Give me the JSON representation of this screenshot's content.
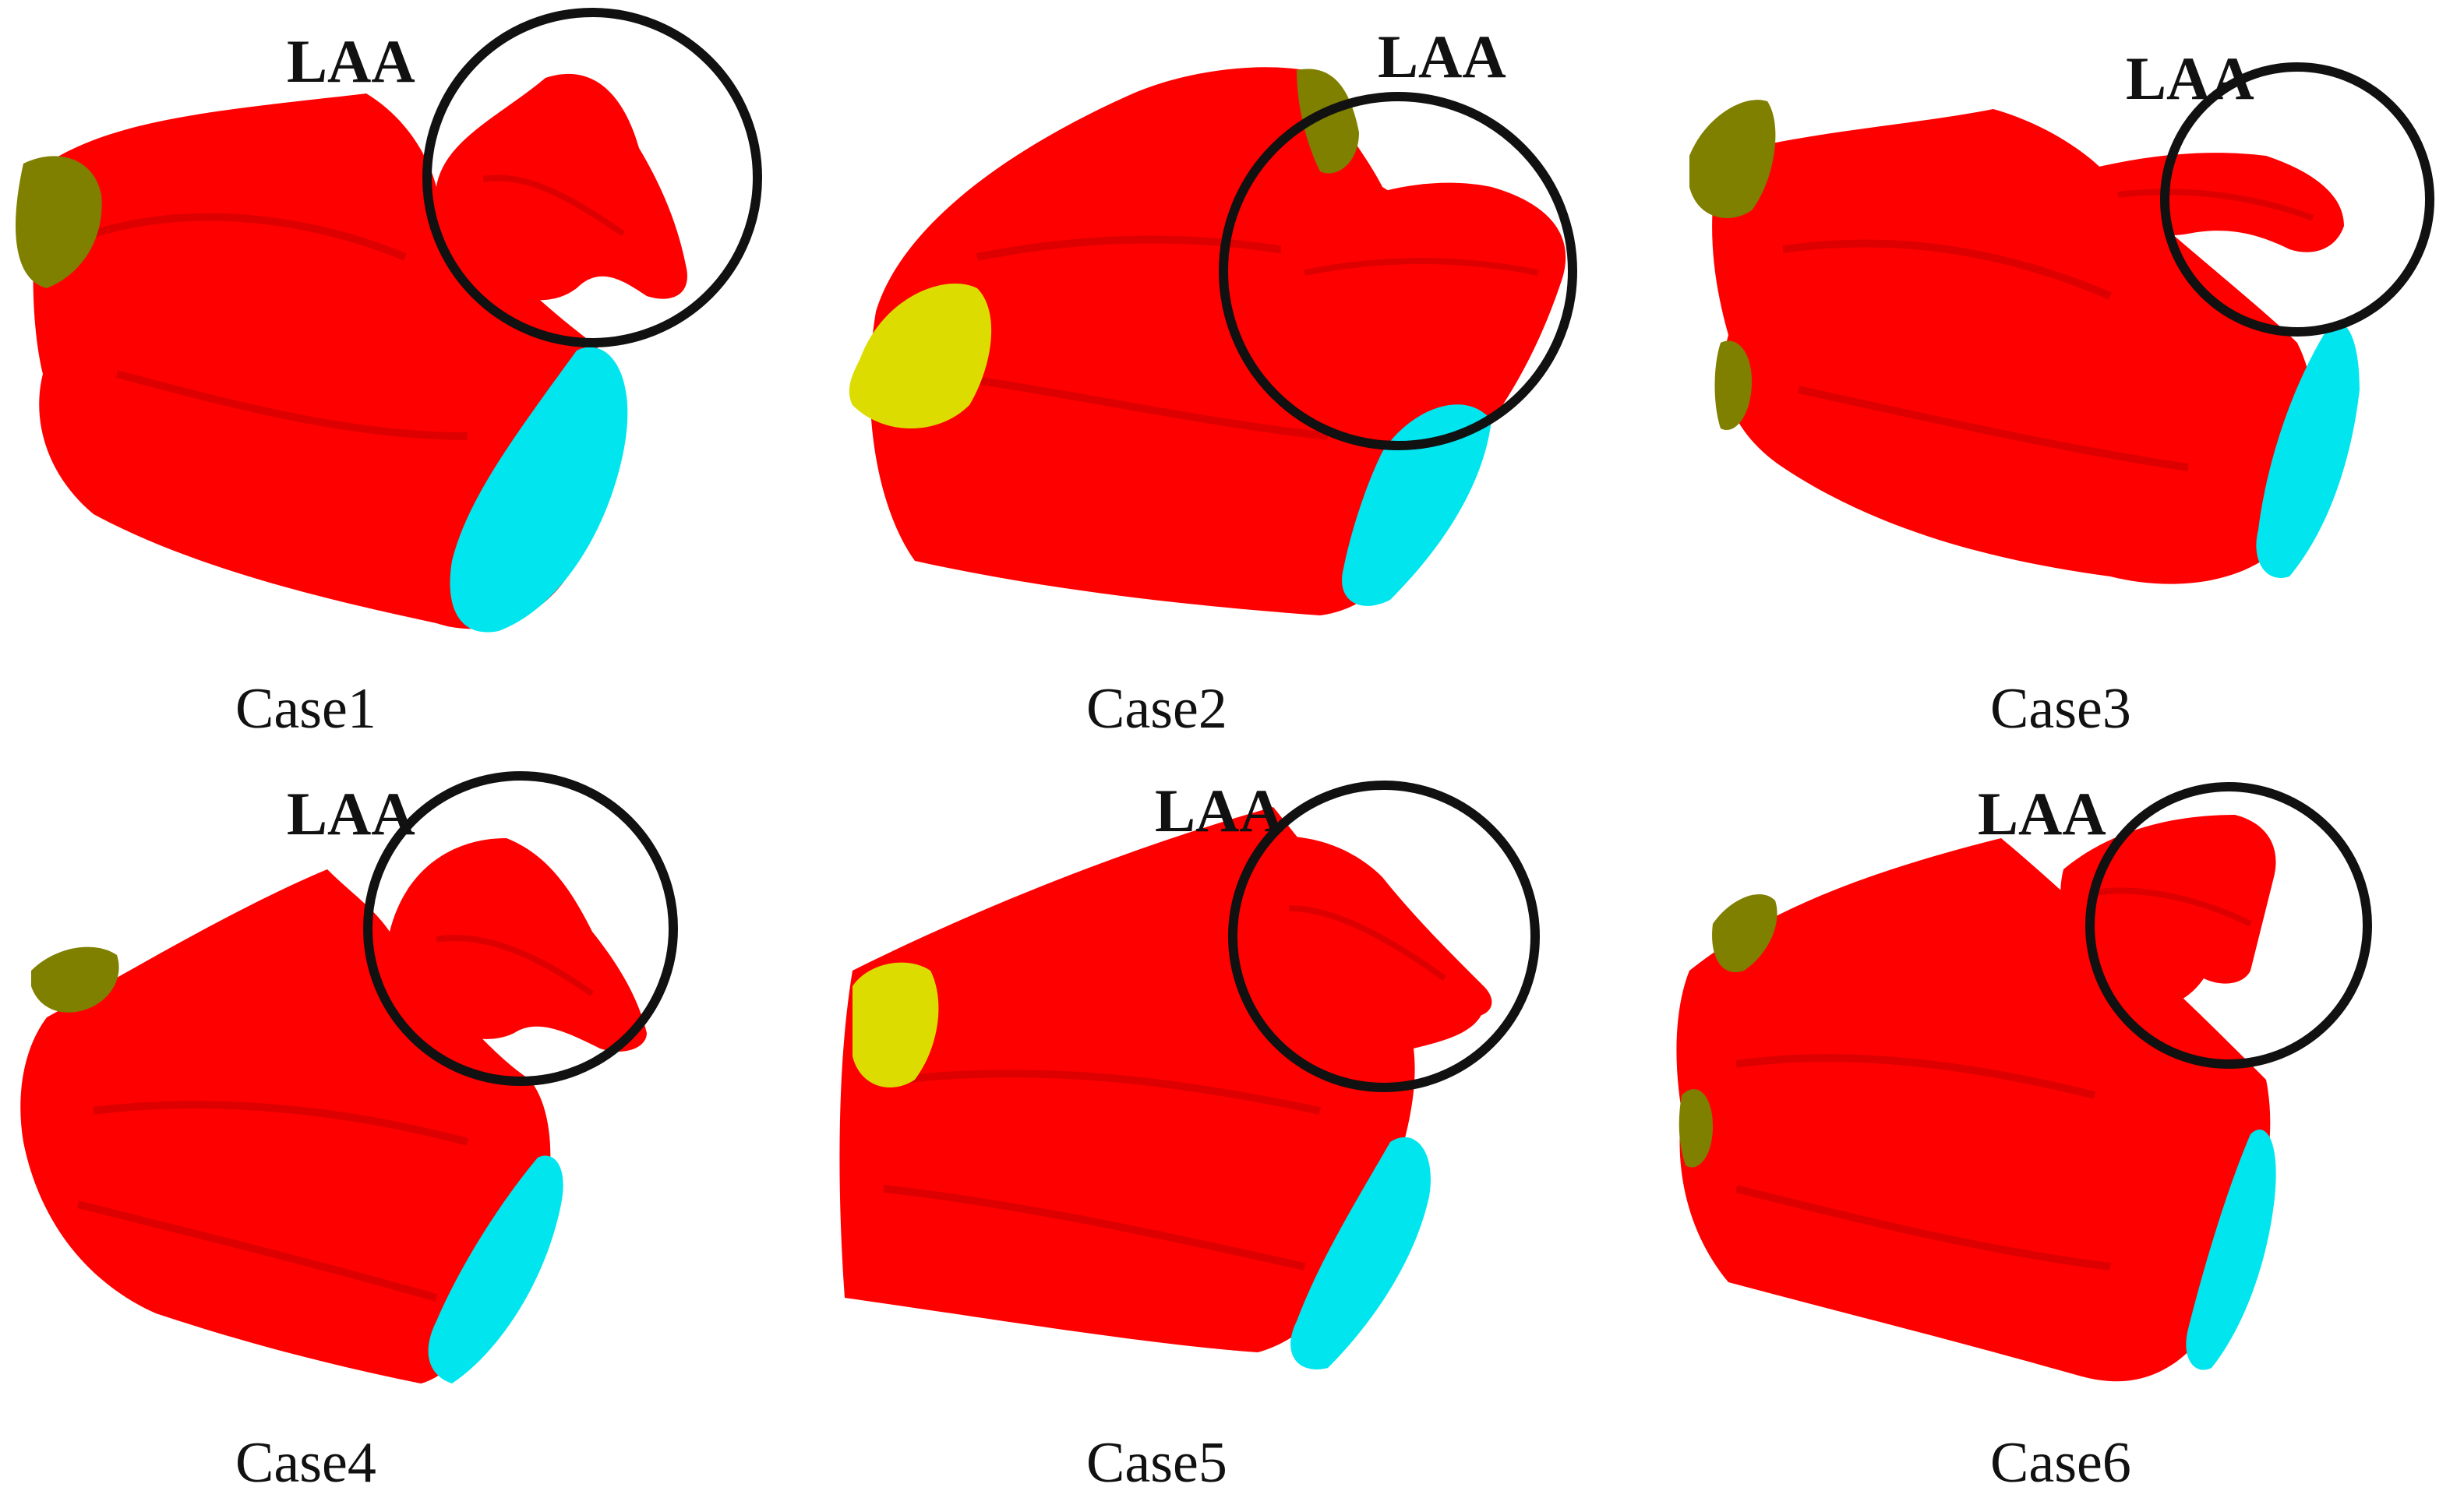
{
  "figure": {
    "colors": {
      "atrium": "#ff0000",
      "atrium_shade": "#c80000",
      "vein_olive": "#7f7f00",
      "vein_yellow": "#dcdc00",
      "valve": "#00e5ee",
      "marker": "#111111"
    },
    "annotation": "LAA",
    "cases": [
      {
        "label": "Case1",
        "annotation": "LAA"
      },
      {
        "label": "Case2",
        "annotation": "LAA"
      },
      {
        "label": "Case3",
        "annotation": "LAA"
      },
      {
        "label": "Case4",
        "annotation": "LAA"
      },
      {
        "label": "Case5",
        "annotation": "LAA"
      },
      {
        "label": "Case6",
        "annotation": "LAA"
      }
    ]
  }
}
